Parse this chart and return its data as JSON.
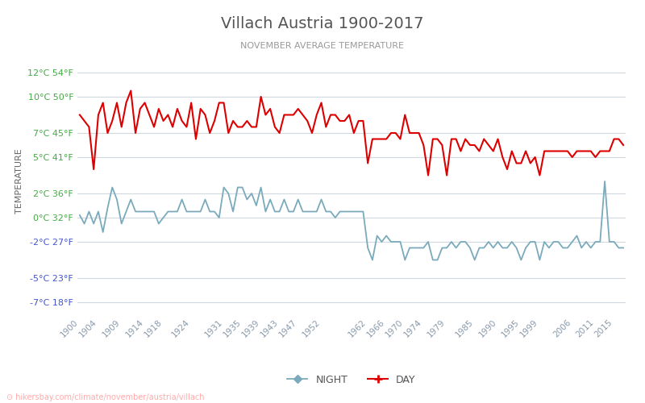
{
  "title": "Villach Austria 1900-2017",
  "subtitle": "NOVEMBER AVERAGE TEMPERATURE",
  "ylabel": "TEMPERATURE",
  "bg_color": "#ffffff",
  "grid_color": "#d0d8e0",
  "day_color": "#dd0000",
  "night_color": "#7aaabb",
  "title_color": "#555555",
  "subtitle_color": "#999999",
  "ylabel_color": "#666666",
  "ytick_color_green": "#44aa44",
  "ytick_color_blue": "#4455cc",
  "xtick_color": "#8899aa",
  "watermark": "hikersbay.com/climate/november/austria/villach",
  "ylim_min": -8,
  "ylim_max": 14,
  "yticks_c": [
    -7,
    -5,
    -2,
    0,
    2,
    5,
    7,
    10,
    12
  ],
  "yticks_f": [
    18,
    23,
    27,
    32,
    36,
    41,
    45,
    50,
    54
  ],
  "xtick_years": [
    1900,
    1904,
    1909,
    1914,
    1918,
    1924,
    1931,
    1935,
    1939,
    1943,
    1947,
    1952,
    1962,
    1966,
    1970,
    1974,
    1979,
    1985,
    1990,
    1995,
    1999,
    2006,
    2011,
    2015
  ],
  "years": [
    1900,
    1901,
    1902,
    1903,
    1904,
    1905,
    1906,
    1907,
    1908,
    1909,
    1910,
    1911,
    1912,
    1913,
    1914,
    1915,
    1916,
    1917,
    1918,
    1919,
    1920,
    1921,
    1922,
    1923,
    1924,
    1925,
    1926,
    1927,
    1928,
    1929,
    1930,
    1931,
    1932,
    1933,
    1934,
    1935,
    1936,
    1937,
    1938,
    1939,
    1940,
    1941,
    1942,
    1943,
    1944,
    1945,
    1946,
    1947,
    1948,
    1949,
    1950,
    1951,
    1952,
    1953,
    1954,
    1955,
    1956,
    1957,
    1958,
    1959,
    1960,
    1961,
    1962,
    1963,
    1964,
    1965,
    1966,
    1967,
    1968,
    1969,
    1970,
    1971,
    1972,
    1973,
    1974,
    1975,
    1976,
    1977,
    1978,
    1979,
    1980,
    1981,
    1982,
    1983,
    1984,
    1985,
    1986,
    1987,
    1988,
    1989,
    1990,
    1991,
    1992,
    1993,
    1994,
    1995,
    1996,
    1997,
    1998,
    1999,
    2000,
    2001,
    2002,
    2003,
    2004,
    2005,
    2006,
    2007,
    2008,
    2009,
    2010,
    2011,
    2012,
    2013,
    2014,
    2015,
    2016,
    2017
  ],
  "day_temps": [
    8.5,
    8.0,
    7.5,
    4.0,
    8.5,
    9.5,
    7.0,
    8.0,
    9.5,
    7.5,
    9.5,
    10.5,
    7.0,
    9.0,
    9.5,
    8.5,
    7.5,
    9.0,
    8.0,
    8.5,
    7.5,
    9.0,
    8.0,
    7.5,
    9.5,
    6.5,
    9.0,
    8.5,
    7.0,
    8.0,
    9.5,
    9.5,
    7.0,
    8.0,
    7.5,
    7.5,
    8.0,
    7.5,
    7.5,
    10.0,
    8.5,
    9.0,
    7.5,
    7.0,
    8.5,
    8.5,
    8.5,
    9.0,
    8.5,
    8.0,
    7.0,
    8.5,
    9.5,
    7.5,
    8.5,
    8.5,
    8.0,
    8.0,
    8.5,
    7.0,
    8.0,
    8.0,
    4.5,
    6.5,
    6.5,
    6.5,
    6.5,
    7.0,
    7.0,
    6.5,
    8.5,
    7.0,
    7.0,
    7.0,
    6.0,
    3.5,
    6.5,
    6.5,
    6.0,
    3.5,
    6.5,
    6.5,
    5.5,
    6.5,
    6.0,
    6.0,
    5.5,
    6.5,
    6.0,
    5.5,
    6.5,
    5.0,
    4.0,
    5.5,
    4.5,
    4.5,
    5.5,
    4.5,
    5.0,
    3.5,
    5.5,
    5.5,
    5.5,
    5.5,
    5.5,
    5.5,
    5.0,
    5.5,
    5.5,
    5.5,
    5.5,
    5.0,
    5.5,
    5.5,
    5.5,
    6.5,
    6.5,
    6.0
  ],
  "night_temps": [
    0.2,
    -0.5,
    0.5,
    -0.5,
    0.5,
    -1.2,
    0.8,
    2.5,
    1.5,
    -0.5,
    0.5,
    1.5,
    0.5,
    0.5,
    0.5,
    0.5,
    0.5,
    -0.5,
    0.0,
    0.5,
    0.5,
    0.5,
    1.5,
    0.5,
    0.5,
    0.5,
    0.5,
    1.5,
    0.5,
    0.5,
    0.0,
    2.5,
    2.0,
    0.5,
    2.5,
    2.5,
    1.5,
    2.0,
    1.0,
    2.5,
    0.5,
    1.5,
    0.5,
    0.5,
    1.5,
    0.5,
    0.5,
    1.5,
    0.5,
    0.5,
    0.5,
    0.5,
    1.5,
    0.5,
    0.5,
    0.0,
    0.5,
    0.5,
    0.5,
    0.5,
    0.5,
    0.5,
    -2.5,
    -3.5,
    -1.5,
    -2.0,
    -1.5,
    -2.0,
    -2.0,
    -2.0,
    -3.5,
    -2.5,
    -2.5,
    -2.5,
    -2.5,
    -2.0,
    -3.5,
    -3.5,
    -2.5,
    -2.5,
    -2.0,
    -2.5,
    -2.0,
    -2.0,
    -2.5,
    -3.5,
    -2.5,
    -2.5,
    -2.0,
    -2.5,
    -2.0,
    -2.5,
    -2.5,
    -2.0,
    -2.5,
    -3.5,
    -2.5,
    -2.0,
    -2.0,
    -3.5,
    -2.0,
    -2.5,
    -2.0,
    -2.0,
    -2.5,
    -2.5,
    -2.0,
    -1.5,
    -2.5,
    -2.0,
    -2.5,
    -2.0,
    -2.0,
    3.0,
    -2.0,
    -2.0,
    -2.5,
    -2.5
  ]
}
